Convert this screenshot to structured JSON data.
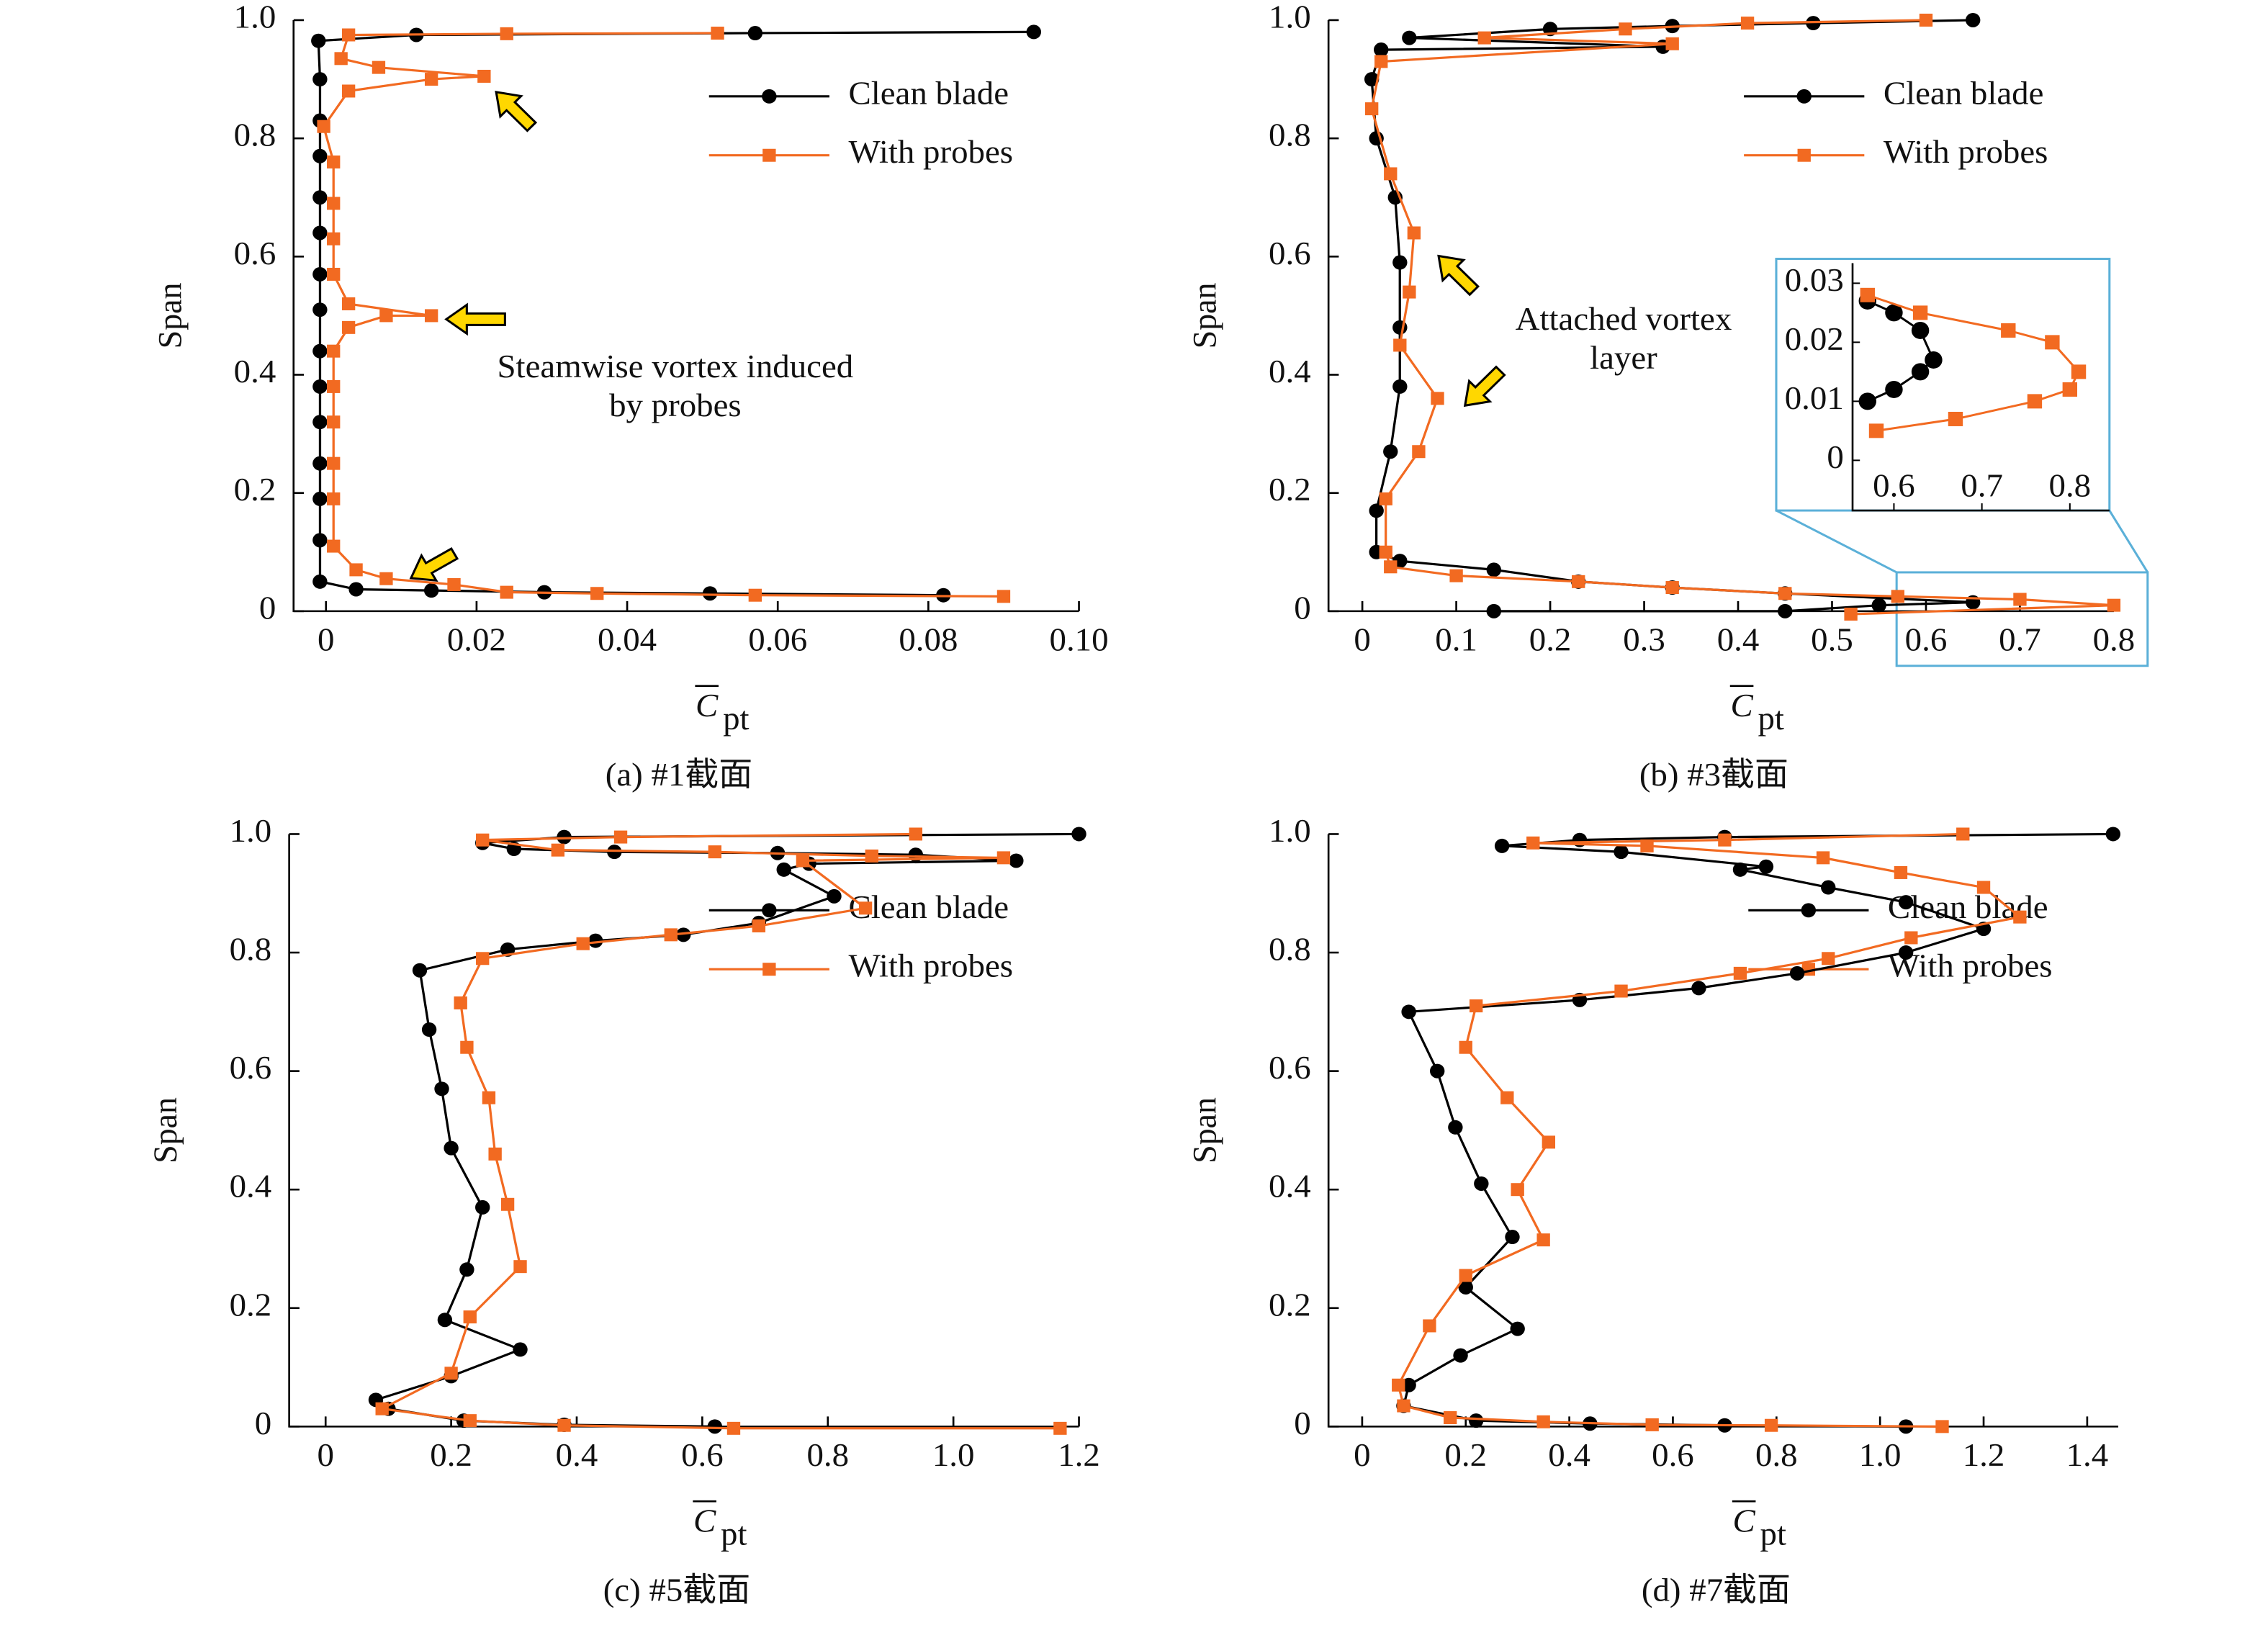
{
  "chart_data": [
    {
      "type": "line",
      "caption": "(a) #1截面",
      "x_label": "C",
      "x_label_subscript": "pt",
      "y_label": "Span",
      "annotation": [
        "Steamwise vortex induced",
        "by probes"
      ],
      "xlim": [
        -0.0043,
        0.1
      ],
      "ylim": [
        0,
        1
      ],
      "xticks": [
        0,
        0.02,
        0.04,
        0.06,
        0.08,
        {
          "value": 0.1,
          "label": "0.10"
        }
      ],
      "yticks": [
        0,
        0.2,
        0.4,
        0.6,
        0.8,
        {
          "value": 1,
          "label": "1.0"
        }
      ],
      "series": [
        {
          "name": "Clean blade",
          "color": "#000000",
          "x": [
            0.082,
            0.051,
            0.029,
            0.014,
            0.004,
            -0.0008,
            -0.0008,
            -0.0008,
            -0.0008,
            -0.0008,
            -0.0008,
            -0.0008,
            -0.0008,
            -0.0008,
            -0.0008,
            -0.0008,
            -0.0008,
            -0.0008,
            -0.0008,
            -0.001,
            0.012,
            0.057,
            0.094
          ],
          "values": [
            0.027,
            0.03,
            0.032,
            0.035,
            0.037,
            0.05,
            0.12,
            0.19,
            0.25,
            0.32,
            0.38,
            0.44,
            0.51,
            0.57,
            0.64,
            0.7,
            0.77,
            0.83,
            0.9,
            0.965,
            0.975,
            0.978,
            0.98
          ]
        },
        {
          "name": "With probes",
          "color": "#f26a21",
          "x": [
            0.09,
            0.057,
            0.036,
            0.024,
            0.017,
            0.008,
            0.004,
            0.001,
            0.001,
            0.001,
            0.001,
            0.001,
            0.001,
            0.003,
            0.008,
            0.014,
            0.003,
            0.001,
            0.001,
            0.001,
            0.001,
            -0.0003,
            0.003,
            0.014,
            0.021,
            0.007,
            0.002,
            0.003,
            0.024,
            0.052
          ],
          "values": [
            0.025,
            0.027,
            0.03,
            0.032,
            0.045,
            0.055,
            0.07,
            0.11,
            0.19,
            0.25,
            0.32,
            0.38,
            0.44,
            0.48,
            0.5,
            0.5,
            0.52,
            0.57,
            0.63,
            0.69,
            0.76,
            0.82,
            0.88,
            0.9,
            0.905,
            0.92,
            0.935,
            0.975,
            0.977,
            0.978
          ]
        }
      ]
    },
    {
      "type": "line",
      "caption": "(b) #3截面",
      "x_label": "C",
      "x_label_subscript": "pt",
      "y_label": "Span",
      "annotation": [
        "Attached vortex",
        "layer"
      ],
      "xlim": [
        -0.036,
        0.8
      ],
      "ylim": [
        0,
        1
      ],
      "xticks": [
        0,
        0.1,
        0.2,
        0.3,
        0.4,
        0.5,
        0.6,
        0.7,
        0.8
      ],
      "yticks": [
        0,
        0.2,
        0.4,
        0.6,
        0.8,
        {
          "value": 1,
          "label": "1.0"
        }
      ],
      "series": [
        {
          "name": "Clean blade",
          "color": "#000000",
          "x": [
            0.14,
            0.45,
            0.55,
            0.65,
            0.45,
            0.33,
            0.23,
            0.14,
            0.04,
            0.015,
            0.015,
            0.03,
            0.04,
            0.04,
            0.04,
            0.035,
            0.015,
            0.01,
            0.02,
            0.32,
            0.05,
            0.2,
            0.33,
            0.48,
            0.65
          ],
          "values": [
            0.0,
            0.0,
            0.01,
            0.015,
            0.03,
            0.04,
            0.05,
            0.07,
            0.085,
            0.1,
            0.17,
            0.27,
            0.38,
            0.48,
            0.59,
            0.7,
            0.8,
            0.9,
            0.95,
            0.955,
            0.97,
            0.985,
            0.99,
            0.995,
            1.0
          ]
        },
        {
          "name": "With probes",
          "color": "#f26a21",
          "x": [
            0.52,
            0.8,
            0.7,
            0.57,
            0.45,
            0.33,
            0.23,
            0.1,
            0.03,
            0.025,
            0.025,
            0.06,
            0.08,
            0.04,
            0.05,
            0.055,
            0.03,
            0.01,
            0.02,
            0.33,
            0.13,
            0.28,
            0.41,
            0.6
          ],
          "values": [
            -0.005,
            0.01,
            0.02,
            0.025,
            0.03,
            0.04,
            0.05,
            0.06,
            0.075,
            0.1,
            0.19,
            0.27,
            0.36,
            0.45,
            0.54,
            0.64,
            0.74,
            0.85,
            0.93,
            0.96,
            0.97,
            0.985,
            0.995,
            1.0
          ]
        }
      ],
      "inset": {
        "xlim": [
          0.553,
          0.845
        ],
        "ylim": [
          -0.0085,
          0.0334
        ],
        "xticks": [
          0.6,
          0.7,
          0.8
        ],
        "yticks": [
          0,
          0.01,
          0.02,
          0.03
        ],
        "series": [
          {
            "color": "#000000",
            "x": [
              0.57,
              0.6,
              0.63,
              0.645,
              0.63,
              0.6,
              0.57
            ],
            "values": [
              0.027,
              0.025,
              0.022,
              0.017,
              0.015,
              0.012,
              0.01
            ]
          },
          {
            "color": "#f26a21",
            "x": [
              0.57,
              0.63,
              0.73,
              0.78,
              0.81,
              0.8,
              0.76,
              0.67,
              0.58
            ],
            "values": [
              0.028,
              0.025,
              0.022,
              0.02,
              0.015,
              0.012,
              0.01,
              0.007,
              0.005
            ]
          }
        ]
      }
    },
    {
      "type": "line",
      "caption": "(c) #5截面",
      "x_label": "C",
      "x_label_subscript": "pt",
      "y_label": "Span",
      "xlim": [
        -0.058,
        1.2
      ],
      "ylim": [
        0,
        1
      ],
      "xticks": [
        0,
        0.2,
        0.4,
        0.6,
        0.8,
        {
          "value": 1,
          "label": "1.0"
        },
        1.2
      ],
      "yticks": [
        0,
        0.2,
        0.4,
        0.6,
        0.8,
        {
          "value": 1,
          "label": "1.0"
        }
      ],
      "series": [
        {
          "name": "Clean blade",
          "color": "#000000",
          "x": [
            0.62,
            0.38,
            0.22,
            0.1,
            0.08,
            0.2,
            0.31,
            0.19,
            0.225,
            0.25,
            0.2,
            0.185,
            0.165,
            0.15,
            0.29,
            0.43,
            0.57,
            0.69,
            0.81,
            0.73,
            0.77,
            1.1,
            0.94,
            0.72,
            0.46,
            0.3,
            0.25,
            0.38,
            1.2
          ],
          "values": [
            0,
            0.003,
            0.01,
            0.03,
            0.045,
            0.085,
            0.13,
            0.18,
            0.265,
            0.37,
            0.47,
            0.57,
            0.67,
            0.77,
            0.805,
            0.82,
            0.83,
            0.85,
            0.895,
            0.94,
            0.95,
            0.955,
            0.965,
            0.968,
            0.97,
            0.975,
            0.985,
            0.995,
            1.0
          ]
        },
        {
          "name": "With probes",
          "color": "#f26a21",
          "x": [
            1.17,
            0.65,
            0.38,
            0.23,
            0.09,
            0.2,
            0.23,
            0.31,
            0.29,
            0.27,
            0.26,
            0.225,
            0.215,
            0.25,
            0.41,
            0.55,
            0.69,
            0.86,
            0.76,
            1.08,
            0.87,
            0.62,
            0.37,
            0.25,
            0.47,
            0.94
          ],
          "values": [
            -0.003,
            -0.003,
            0.002,
            0.01,
            0.03,
            0.09,
            0.185,
            0.27,
            0.375,
            0.46,
            0.555,
            0.64,
            0.715,
            0.79,
            0.815,
            0.83,
            0.845,
            0.875,
            0.955,
            0.96,
            0.963,
            0.97,
            0.973,
            0.99,
            0.995,
            1.0
          ]
        }
      ]
    },
    {
      "type": "line",
      "caption": "(d) #7截面",
      "x_label": "C",
      "x_label_subscript": "pt",
      "y_label": "Span",
      "xlim": [
        -0.065,
        1.46
      ],
      "ylim": [
        0,
        1
      ],
      "xticks": [
        0,
        0.2,
        0.4,
        0.6,
        0.8,
        {
          "value": 1,
          "label": "1.0"
        },
        1.2,
        1.4
      ],
      "yticks": [
        0,
        0.2,
        0.4,
        0.6,
        0.8,
        {
          "value": 1,
          "label": "1.0"
        }
      ],
      "series": [
        {
          "name": "Clean blade",
          "color": "#000000",
          "x": [
            1.05,
            0.7,
            0.44,
            0.22,
            0.08,
            0.09,
            0.19,
            0.3,
            0.2,
            0.29,
            0.23,
            0.18,
            0.145,
            0.09,
            0.42,
            0.65,
            0.84,
            1.05,
            1.2,
            1.05,
            0.9,
            0.73,
            0.78,
            0.5,
            0.27,
            0.42,
            0.7,
            1.45
          ],
          "values": [
            0,
            0.002,
            0.005,
            0.01,
            0.035,
            0.07,
            0.12,
            0.165,
            0.235,
            0.32,
            0.41,
            0.505,
            0.6,
            0.7,
            0.72,
            0.74,
            0.765,
            0.8,
            0.84,
            0.885,
            0.91,
            0.94,
            0.945,
            0.97,
            0.98,
            0.99,
            0.995,
            1.0
          ]
        },
        {
          "name": "With probes",
          "color": "#f26a21",
          "x": [
            1.12,
            0.79,
            0.56,
            0.35,
            0.17,
            0.08,
            0.07,
            0.13,
            0.2,
            0.35,
            0.3,
            0.36,
            0.28,
            0.2,
            0.22,
            0.5,
            0.73,
            0.9,
            1.06,
            1.27,
            1.2,
            1.04,
            0.89,
            0.55,
            0.33,
            0.7,
            1.16
          ],
          "values": [
            0,
            0.002,
            0.003,
            0.008,
            0.015,
            0.035,
            0.07,
            0.17,
            0.255,
            0.315,
            0.4,
            0.48,
            0.555,
            0.64,
            0.71,
            0.735,
            0.765,
            0.79,
            0.825,
            0.86,
            0.91,
            0.935,
            0.96,
            0.98,
            0.985,
            0.99,
            1.0
          ]
        }
      ]
    }
  ]
}
